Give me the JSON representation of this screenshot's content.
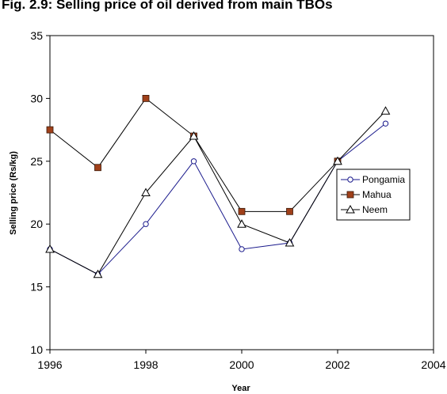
{
  "chart_data": {
    "type": "line",
    "title": "Fig. 2.9: Selling price of oil derived from main TBOs",
    "xlabel": "Year",
    "ylabel": "Selling price (Rs/kg)",
    "xlim": [
      1996,
      2004
    ],
    "ylim": [
      10,
      35
    ],
    "x_ticks": [
      1996,
      1998,
      2000,
      2002,
      2004
    ],
    "y_ticks": [
      10,
      15,
      20,
      25,
      30,
      35
    ],
    "grid": false,
    "legend_position": "right",
    "series": [
      {
        "name": "Pongamia",
        "marker": "circle",
        "color": "#1a1a8c",
        "x": [
          1996,
          1997,
          1998,
          1999,
          2000,
          2001,
          2002,
          2003
        ],
        "y": [
          18,
          16,
          20,
          25,
          18,
          18.5,
          25,
          28
        ]
      },
      {
        "name": "Mahua",
        "marker": "square",
        "color": "#000000",
        "marker_fill": "#a0401a",
        "x": [
          1996,
          1997,
          1998,
          1999,
          2000,
          2001,
          2002
        ],
        "y": [
          27.5,
          24.5,
          30,
          27,
          21,
          21,
          25
        ]
      },
      {
        "name": "Neem",
        "marker": "triangle",
        "color": "#000000",
        "x": [
          1996,
          1997,
          1998,
          1999,
          2000,
          2001,
          2002,
          2003
        ],
        "y": [
          18,
          16,
          22.5,
          27,
          20,
          18.5,
          25,
          29
        ]
      }
    ]
  }
}
